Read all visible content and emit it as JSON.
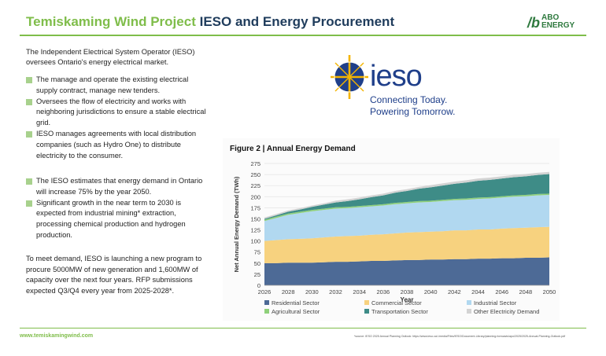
{
  "header": {
    "title_green": "Temiskaming Wind Project",
    "title_dark": "IESO and Energy Procurement",
    "logo_line1": "ABO",
    "logo_line2": "ENERGY"
  },
  "intro": "The Independent Electrical System Operator (IESO) oversees Ontario's energy electrical market.",
  "bullets_group1": [
    "The manage and operate the existing electrical supply contract, manage new tenders.",
    "Oversees the flow of electricity and works with neighboring jurisdictions to ensure a stable electrical grid.",
    "IESO manages agreements with local distribution companies (such as Hydro One) to distribute electricity to the consumer."
  ],
  "bullets_group2": [
    "The IESO estimates that energy demand in Ontario will increase 75% by the year 2050.",
    "Significant growth in the near term to 2030 is expected from industrial mining* extraction, processing chemical production and hydrogen production."
  ],
  "closing_paragraph": "To meet demand, IESO is launching a new program to procure 5000MW of new generation and 1,600MW of capacity over the next four years. RFP submissions expected Q3/Q4 every year from 2025-2028*.",
  "ieso_logo": {
    "word": "ieso",
    "tagline_line1": "Connecting Today.",
    "tagline_line2": "Powering Tomorrow."
  },
  "footer": {
    "url": "www.temiskamingwind.com",
    "source": "*source: IESO 2025 Annual Planning Outlook: https://www.ieso.ca/-/media/Files/IESO/Document-Library/planning-forecasts/apo/2025/2025-Annual-Planning-Outlook.pdf"
  },
  "colors": {
    "green": "#7fbd4a",
    "navy": "#1f3c5c",
    "ieso_blue": "#1f3f8a",
    "ieso_gold": "#f4b400"
  },
  "chart_data": {
    "type": "area",
    "stacked": true,
    "title": "Figure 2 | Annual Energy Demand",
    "xlabel": "Year",
    "ylabel": "Net Annual Energy Demand (TWh)",
    "ylim": [
      0,
      275
    ],
    "yticks": [
      0,
      25,
      50,
      75,
      100,
      125,
      150,
      175,
      200,
      225,
      250,
      275
    ],
    "xticks": [
      2026,
      2028,
      2030,
      2032,
      2034,
      2036,
      2038,
      2040,
      2042,
      2044,
      2046,
      2048,
      2050
    ],
    "x": [
      2026,
      2027,
      2028,
      2029,
      2030,
      2031,
      2032,
      2033,
      2034,
      2035,
      2036,
      2037,
      2038,
      2039,
      2040,
      2041,
      2042,
      2043,
      2044,
      2045,
      2046,
      2047,
      2048,
      2049,
      2050
    ],
    "series": [
      {
        "name": "Residential Sector",
        "color": "#4d6a96",
        "values": [
          50,
          50,
          51,
          51,
          51,
          52,
          53,
          53,
          54,
          55,
          55,
          56,
          57,
          57,
          58,
          58,
          59,
          59,
          60,
          60,
          61,
          61,
          62,
          62,
          63
        ]
      },
      {
        "name": "Commercial Sector",
        "color": "#f7d27f",
        "values": [
          50,
          52,
          53,
          54,
          55,
          56,
          57,
          58,
          58,
          59,
          60,
          61,
          62,
          63,
          63,
          64,
          65,
          65,
          66,
          66,
          67,
          68,
          68,
          69,
          69
        ]
      },
      {
        "name": "Industrial Sector",
        "color": "#b1d8f0",
        "values": [
          45,
          50,
          55,
          58,
          61,
          62,
          63,
          63,
          64,
          64,
          65,
          66,
          66,
          67,
          67,
          68,
          68,
          69,
          69,
          70,
          70,
          71,
          71,
          72,
          72
        ]
      },
      {
        "name": "Agricultural Sector",
        "color": "#8fd07a",
        "values": [
          3,
          3,
          3,
          3,
          3,
          3,
          3,
          3,
          3,
          3,
          3,
          3,
          3,
          3,
          3,
          3,
          3,
          3,
          3,
          3,
          3,
          3,
          3,
          3,
          3
        ]
      },
      {
        "name": "Transportation Sector",
        "color": "#3e8c87",
        "values": [
          2,
          3,
          4,
          5,
          7,
          9,
          11,
          13,
          15,
          18,
          20,
          23,
          25,
          28,
          30,
          32,
          34,
          36,
          38,
          39,
          40,
          41,
          42,
          43,
          44
        ]
      },
      {
        "name": "Other Electricity Demand",
        "color": "#d3d3d3",
        "values": [
          3,
          3,
          3,
          3,
          3,
          3,
          4,
          4,
          4,
          4,
          4,
          4,
          4,
          4,
          5,
          5,
          5,
          5,
          5,
          5,
          5,
          5,
          5,
          5,
          5
        ]
      }
    ],
    "legend_position": "bottom"
  }
}
